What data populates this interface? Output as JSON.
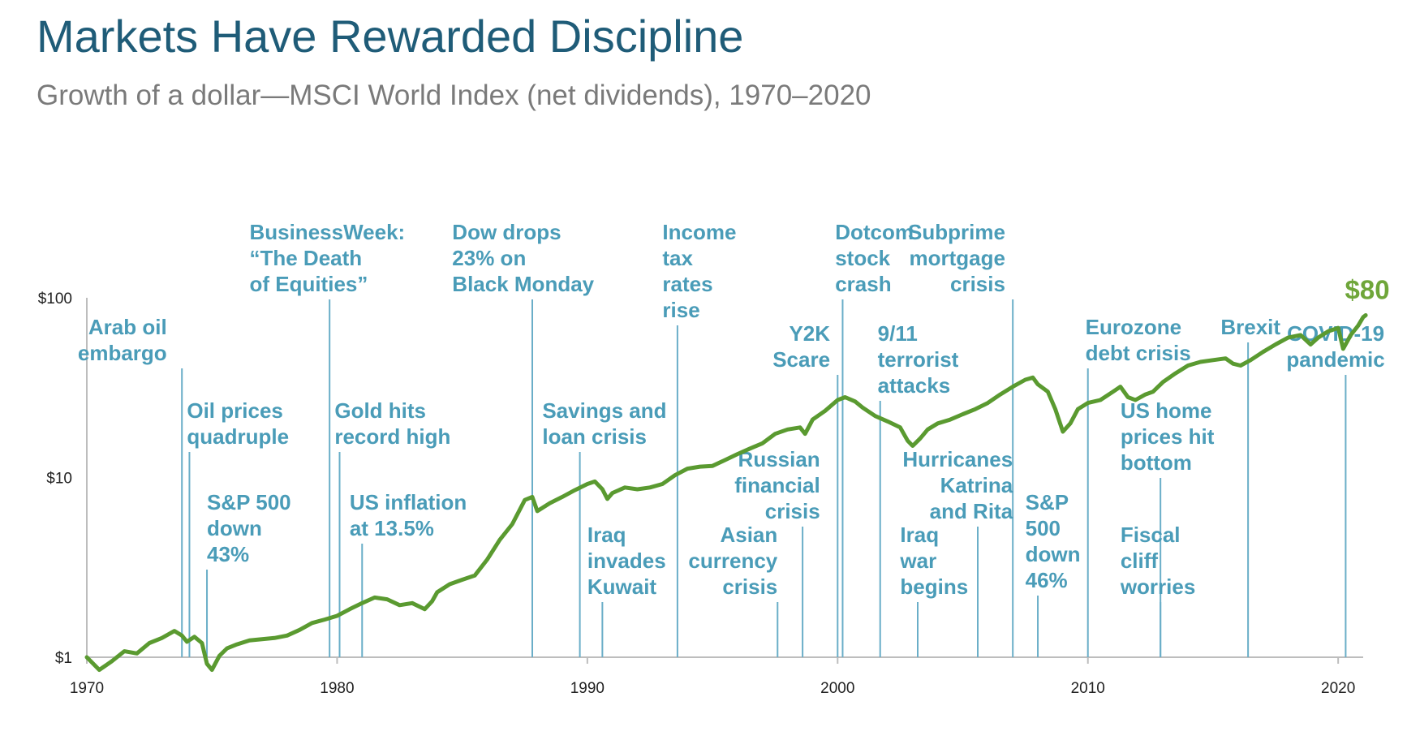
{
  "title": "Markets Have Rewarded Discipline",
  "subtitle": "Growth of a dollar—MSCI World Index (net dividends), 1970–2020",
  "colors": {
    "line": "#5a9a30",
    "annotation": "#4a9cb8",
    "marker": "#6aaec8",
    "title": "#1f5c78",
    "end_value": "#6fa63a"
  },
  "chart_data": {
    "type": "line",
    "y_scale": "log",
    "ylim": [
      1,
      100
    ],
    "xlim": [
      1970,
      2021
    ],
    "y_ticks": [
      1,
      10,
      100
    ],
    "y_tick_labels": [
      "$1",
      "$10",
      "$100"
    ],
    "x_ticks": [
      1970,
      1980,
      1990,
      2000,
      2010,
      2020
    ],
    "x_tick_labels": [
      "1970",
      "1980",
      "1990",
      "2000",
      "2010",
      "2020"
    ],
    "end_label": "$80",
    "points": [
      [
        1970.0,
        1.0
      ],
      [
        1970.5,
        0.85
      ],
      [
        1971.0,
        0.95
      ],
      [
        1971.5,
        1.08
      ],
      [
        1972.0,
        1.05
      ],
      [
        1972.5,
        1.2
      ],
      [
        1973.0,
        1.28
      ],
      [
        1973.5,
        1.4
      ],
      [
        1973.8,
        1.32
      ],
      [
        1974.0,
        1.22
      ],
      [
        1974.3,
        1.3
      ],
      [
        1974.6,
        1.2
      ],
      [
        1974.8,
        0.92
      ],
      [
        1975.0,
        0.85
      ],
      [
        1975.3,
        1.02
      ],
      [
        1975.6,
        1.12
      ],
      [
        1976.0,
        1.18
      ],
      [
        1976.5,
        1.24
      ],
      [
        1977.0,
        1.26
      ],
      [
        1977.5,
        1.28
      ],
      [
        1978.0,
        1.32
      ],
      [
        1978.5,
        1.42
      ],
      [
        1979.0,
        1.55
      ],
      [
        1979.5,
        1.62
      ],
      [
        1980.0,
        1.7
      ],
      [
        1980.5,
        1.85
      ],
      [
        1981.0,
        2.0
      ],
      [
        1981.5,
        2.15
      ],
      [
        1982.0,
        2.1
      ],
      [
        1982.5,
        1.95
      ],
      [
        1983.0,
        2.0
      ],
      [
        1983.5,
        1.85
      ],
      [
        1983.8,
        2.05
      ],
      [
        1984.0,
        2.3
      ],
      [
        1984.5,
        2.55
      ],
      [
        1985.0,
        2.7
      ],
      [
        1985.5,
        2.85
      ],
      [
        1986.0,
        3.5
      ],
      [
        1986.5,
        4.5
      ],
      [
        1987.0,
        5.5
      ],
      [
        1987.5,
        7.5
      ],
      [
        1987.8,
        7.8
      ],
      [
        1988.0,
        6.5
      ],
      [
        1988.5,
        7.2
      ],
      [
        1989.0,
        7.8
      ],
      [
        1989.5,
        8.5
      ],
      [
        1990.0,
        9.2
      ],
      [
        1990.3,
        9.5
      ],
      [
        1990.6,
        8.6
      ],
      [
        1990.8,
        7.6
      ],
      [
        1991.0,
        8.2
      ],
      [
        1991.5,
        8.8
      ],
      [
        1992.0,
        8.6
      ],
      [
        1992.5,
        8.8
      ],
      [
        1993.0,
        9.2
      ],
      [
        1993.5,
        10.3
      ],
      [
        1994.0,
        11.2
      ],
      [
        1994.5,
        11.5
      ],
      [
        1995.0,
        11.6
      ],
      [
        1995.5,
        12.5
      ],
      [
        1996.0,
        13.5
      ],
      [
        1996.5,
        14.5
      ],
      [
        1997.0,
        15.5
      ],
      [
        1997.5,
        17.5
      ],
      [
        1998.0,
        18.5
      ],
      [
        1998.5,
        19.0
      ],
      [
        1998.7,
        17.5
      ],
      [
        1999.0,
        21.0
      ],
      [
        1999.5,
        23.5
      ],
      [
        2000.0,
        27.0
      ],
      [
        2000.3,
        28.0
      ],
      [
        2000.7,
        26.5
      ],
      [
        2001.0,
        24.5
      ],
      [
        2001.5,
        22.0
      ],
      [
        2002.0,
        20.5
      ],
      [
        2002.5,
        19.0
      ],
      [
        2002.8,
        16.0
      ],
      [
        2003.0,
        15.0
      ],
      [
        2003.3,
        16.5
      ],
      [
        2003.6,
        18.5
      ],
      [
        2004.0,
        20.0
      ],
      [
        2004.5,
        21.0
      ],
      [
        2005.0,
        22.5
      ],
      [
        2005.5,
        24.0
      ],
      [
        2006.0,
        26.0
      ],
      [
        2006.5,
        29.0
      ],
      [
        2007.0,
        32.0
      ],
      [
        2007.5,
        35.0
      ],
      [
        2007.8,
        36.0
      ],
      [
        2008.0,
        33.0
      ],
      [
        2008.4,
        30.0
      ],
      [
        2008.7,
        24.0
      ],
      [
        2009.0,
        18.0
      ],
      [
        2009.3,
        20.0
      ],
      [
        2009.6,
        24.0
      ],
      [
        2010.0,
        26.0
      ],
      [
        2010.5,
        27.0
      ],
      [
        2011.0,
        30.0
      ],
      [
        2011.3,
        32.0
      ],
      [
        2011.6,
        28.0
      ],
      [
        2011.9,
        27.0
      ],
      [
        2012.3,
        29.0
      ],
      [
        2012.6,
        30.0
      ],
      [
        2013.0,
        34.0
      ],
      [
        2013.5,
        38.0
      ],
      [
        2014.0,
        42.0
      ],
      [
        2014.5,
        44.0
      ],
      [
        2015.0,
        45.0
      ],
      [
        2015.5,
        46.0
      ],
      [
        2015.8,
        43.0
      ],
      [
        2016.1,
        42.0
      ],
      [
        2016.5,
        45.0
      ],
      [
        2017.0,
        50.0
      ],
      [
        2017.5,
        55.0
      ],
      [
        2018.0,
        60.0
      ],
      [
        2018.5,
        62.0
      ],
      [
        2018.9,
        55.0
      ],
      [
        2019.2,
        60.0
      ],
      [
        2019.6,
        65.0
      ],
      [
        2020.0,
        68.0
      ],
      [
        2020.2,
        52.0
      ],
      [
        2020.5,
        62.0
      ],
      [
        2020.8,
        70.0
      ],
      [
        2021.0,
        78.0
      ],
      [
        2021.1,
        80.0
      ]
    ],
    "annotations": [
      {
        "year": 1973.8,
        "lines": [
          "Arab oil",
          "embargo"
        ],
        "align": "end",
        "at_year": 1973.2,
        "row": 1
      },
      {
        "year": 1974.1,
        "lines": [
          "Oil prices",
          "quadruple"
        ],
        "align": "start",
        "at_year": 1974.0,
        "row": 3
      },
      {
        "year": 1974.8,
        "lines": [
          "S&P 500",
          "down",
          "43%"
        ],
        "align": "start",
        "at_year": 1974.8,
        "row": 5
      },
      {
        "year": 1979.7,
        "lines": [
          "BusinessWeek:",
          "“The Death",
          "of Equities”"
        ],
        "align": "start",
        "at_year": 1976.5,
        "row": 0
      },
      {
        "year": 1980.1,
        "lines": [
          "Gold hits",
          "record high"
        ],
        "align": "start",
        "at_year": 1979.9,
        "row": 3
      },
      {
        "year": 1981.0,
        "lines": [
          "US inflation",
          "at 13.5%"
        ],
        "align": "start",
        "at_year": 1980.5,
        "row": 5
      },
      {
        "year": 1987.8,
        "lines": [
          "Dow drops",
          "23% on",
          "Black Monday"
        ],
        "align": "start",
        "at_year": 1984.6,
        "row": 0
      },
      {
        "year": 1989.7,
        "lines": [
          "Savings and",
          "loan crisis"
        ],
        "align": "start",
        "at_year": 1988.2,
        "row": 3
      },
      {
        "year": 1990.6,
        "lines": [
          "Iraq",
          "invades",
          "Kuwait"
        ],
        "align": "start",
        "at_year": 1990.0,
        "row": 6
      },
      {
        "year": 1993.6,
        "lines": [
          "Income",
          "tax",
          "rates",
          "rise"
        ],
        "align": "start",
        "at_year": 1993.0,
        "row": 0
      },
      {
        "year": 1997.6,
        "lines": [
          "Asian",
          "currency",
          "crisis"
        ],
        "align": "end",
        "at_year": 1997.6,
        "row": 6
      },
      {
        "year": 1998.6,
        "lines": [
          "Russian",
          "financial",
          "crisis"
        ],
        "align": "end",
        "at_year": 1999.3,
        "row": 4
      },
      {
        "year": 2000.0,
        "lines": [
          "Y2K",
          "Scare"
        ],
        "align": "end",
        "at_year": 1999.7,
        "row": 2
      },
      {
        "year": 2000.2,
        "lines": [
          "Dotcom",
          "stock",
          "crash"
        ],
        "align": "start",
        "at_year": 1999.9,
        "row": 0
      },
      {
        "year": 2001.7,
        "lines": [
          "9/11",
          "terrorist",
          "attacks"
        ],
        "align": "start",
        "at_year": 2001.6,
        "row": 2
      },
      {
        "year": 2003.2,
        "lines": [
          "Iraq",
          "war",
          "begins"
        ],
        "align": "start",
        "at_year": 2002.5,
        "row": 6
      },
      {
        "year": 2005.6,
        "lines": [
          "Hurricanes",
          "Katrina",
          "and Rita"
        ],
        "align": "end",
        "at_year": 2007.0,
        "row": 4
      },
      {
        "year": 2007.0,
        "lines": [
          "Subprime",
          "mortgage",
          "crisis"
        ],
        "align": "end",
        "at_year": 2006.7,
        "row": 0
      },
      {
        "year": 2008.0,
        "lines": [
          "S&P",
          "500",
          "down",
          "46%"
        ],
        "align": "start",
        "at_year": 2007.5,
        "row": 5
      },
      {
        "year": 2010.0,
        "lines": [
          "Eurozone",
          "debt crisis"
        ],
        "align": "start",
        "at_year": 2009.9,
        "row": 1
      },
      {
        "year": 2012.9,
        "lines": [
          "US home",
          "prices hit",
          "bottom"
        ],
        "align": "start",
        "at_year": 2011.3,
        "row": 3
      },
      {
        "year": 2012.9,
        "lines": [
          "Fiscal",
          "cliff",
          "worries"
        ],
        "align": "start",
        "at_year": 2011.3,
        "row": 6
      },
      {
        "year": 2016.4,
        "lines": [
          "Brexit"
        ],
        "align": "middle",
        "at_year": 2016.5,
        "row": 1
      },
      {
        "year": 2020.3,
        "lines": [
          "COVID-19",
          "pandemic"
        ],
        "align": "middle",
        "at_year": 2019.9,
        "row": 2
      }
    ]
  }
}
